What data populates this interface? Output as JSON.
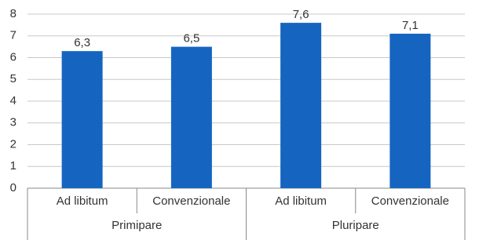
{
  "chart_data": {
    "type": "bar",
    "categories": [
      "Ad libitum",
      "Convenzionale",
      "Ad libitum",
      "Convenzionale"
    ],
    "groups": [
      "Primipare",
      "Pluripare"
    ],
    "values": [
      6.3,
      6.5,
      7.6,
      7.1
    ],
    "value_labels": [
      "6,3",
      "6,5",
      "7,6",
      "7,1"
    ],
    "color": "#1565c0",
    "ylim": [
      0,
      8
    ],
    "yticks": [
      0,
      1,
      2,
      3,
      4,
      5,
      6,
      7,
      8
    ],
    "grid": true
  }
}
